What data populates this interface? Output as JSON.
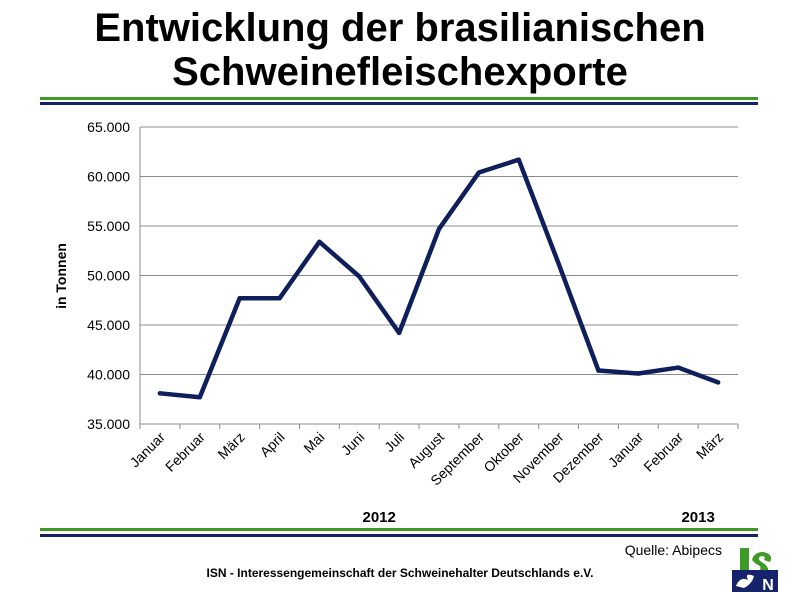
{
  "title": {
    "line1": "Entwicklung der brasilianischen",
    "line2": "Schweinefleischexporte"
  },
  "chart_data": {
    "type": "line",
    "ylabel": "in Tonnen",
    "ylim": [
      35000,
      65000
    ],
    "yticks": [
      "35.000",
      "40.000",
      "45.000",
      "50.000",
      "55.000",
      "60.000",
      "65.000"
    ],
    "grid": true,
    "line_color": "#0f1f5c",
    "categories": [
      "Januar",
      "Februar",
      "März",
      "April",
      "Mai",
      "Juni",
      "Juli",
      "August",
      "September",
      "Oktober",
      "November",
      "Dezember",
      "Januar",
      "Februar",
      "März"
    ],
    "values": [
      38100,
      37700,
      47700,
      47700,
      53400,
      49900,
      44200,
      54700,
      60400,
      61700,
      51200,
      40400,
      40100,
      40700,
      39200
    ],
    "year_labels": [
      {
        "label": "2012",
        "category_index": 5.5
      },
      {
        "label": "2013",
        "category_index": 13.5
      }
    ]
  },
  "source": "Quelle: Abipecs",
  "footer": "ISN - Interessengemeinschaft der Schweinehalter Deutschlands e.V.",
  "logo": {
    "text": "ISN",
    "colors": {
      "green": "#3d9a27",
      "navy": "#16226b"
    }
  }
}
